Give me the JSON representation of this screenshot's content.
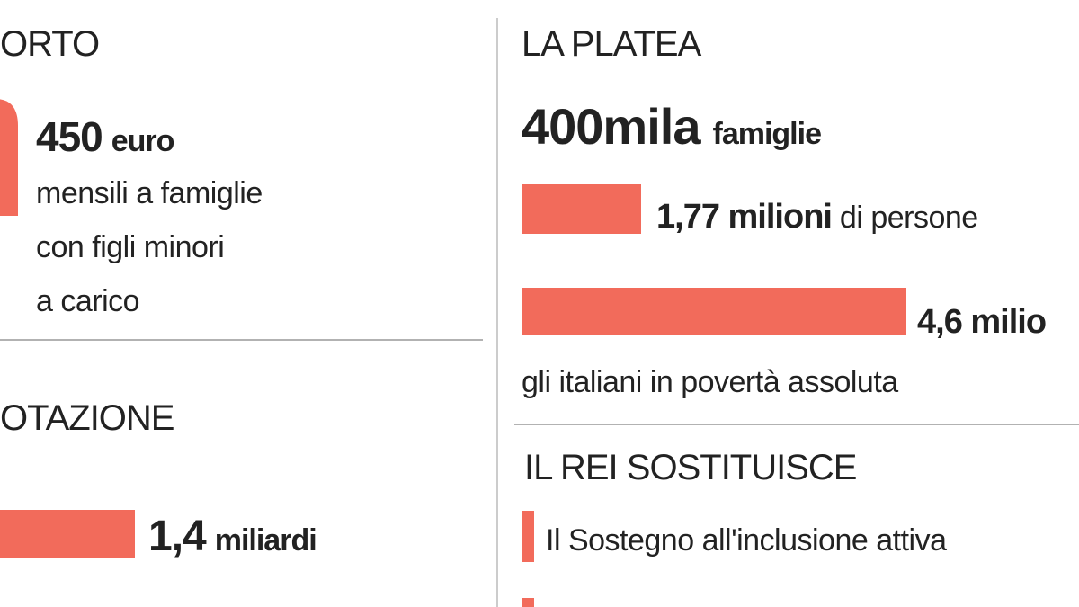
{
  "left": {
    "section1": {
      "heading": "ORTO",
      "amount": "450",
      "unit": "euro",
      "lines": [
        "mensili a famiglie",
        "con figli minori",
        "a carico"
      ]
    },
    "section2": {
      "heading": "OTAZIONE",
      "amount": "1,4",
      "unit": "miliardi"
    }
  },
  "right": {
    "platea": {
      "heading": "LA PLATEA",
      "amount": "400mila",
      "unit": "famiglie",
      "people": {
        "amount": "1,77 milioni",
        "rest": " di persone"
      },
      "poor": {
        "amount": "4,6 milio",
        "caption": "gli italiani in povertà assoluta"
      }
    },
    "rei": {
      "heading": "IL REI SOSTITUISCE",
      "items": [
        "Il Sostegno all'inclusione attiva"
      ]
    }
  }
}
